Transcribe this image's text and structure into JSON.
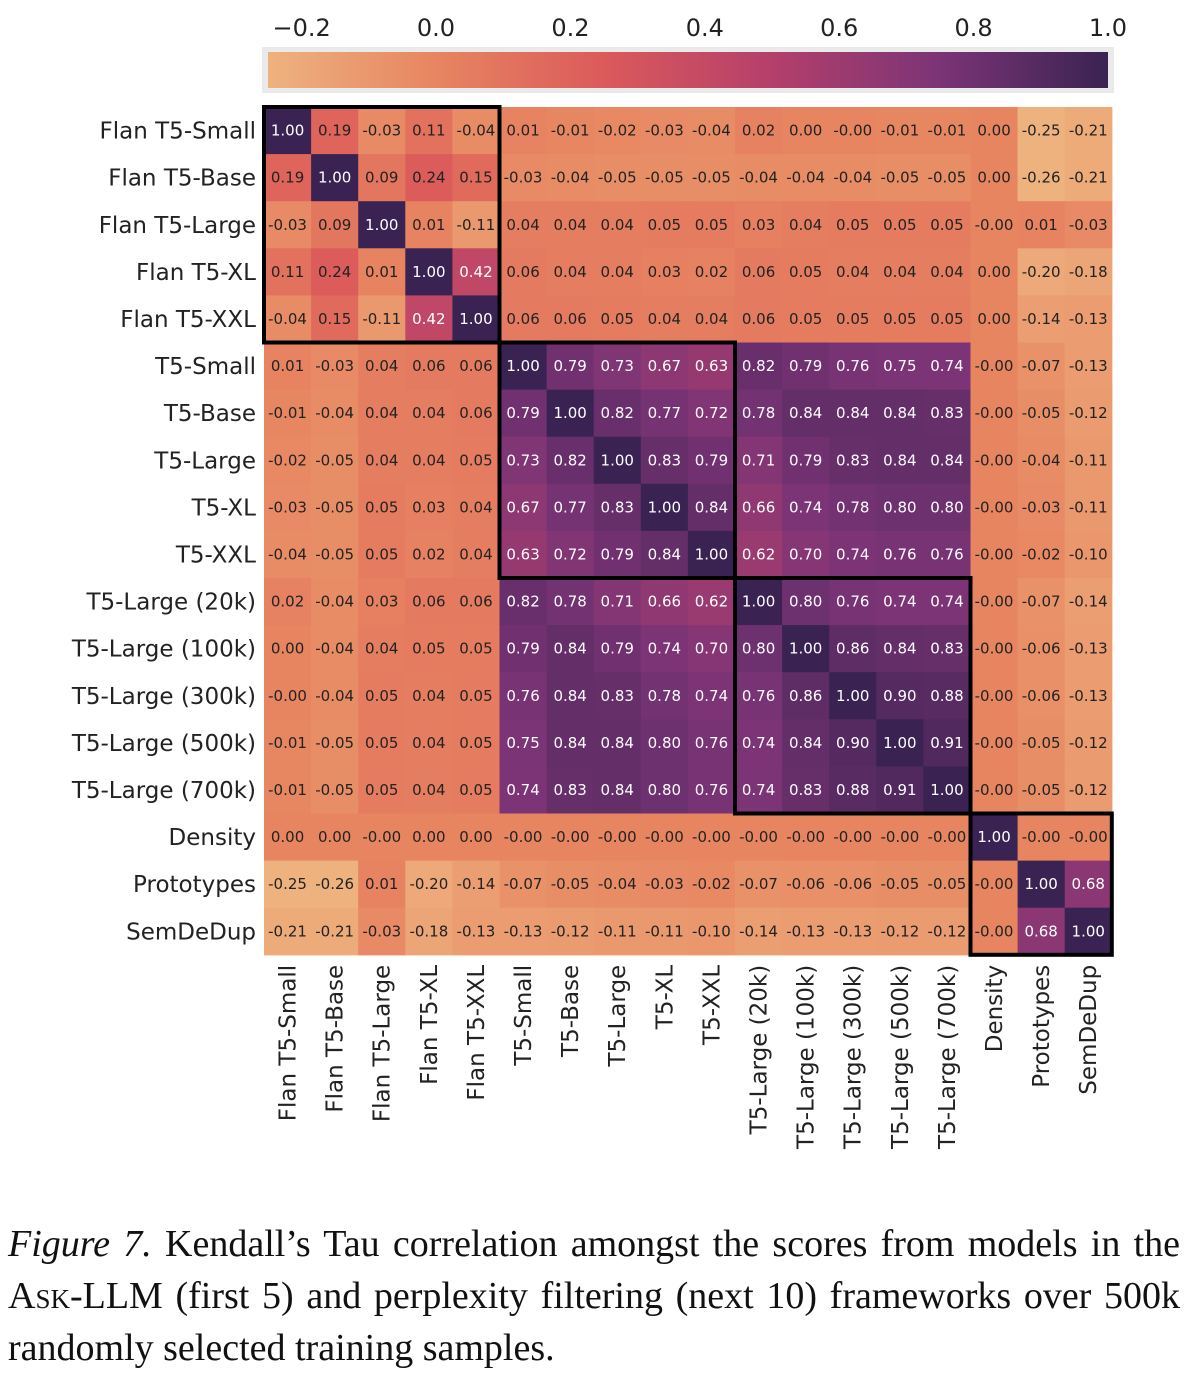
{
  "chart_data": {
    "type": "heatmap",
    "labels": [
      "Flan T5-Small",
      "Flan T5-Base",
      "Flan T5-Large",
      "Flan T5-XL",
      "Flan T5-XXL",
      "T5-Small",
      "T5-Base",
      "T5-Large",
      "T5-XL",
      "T5-XXL",
      "T5-Large (20k)",
      "T5-Large (100k)",
      "T5-Large (300k)",
      "T5-Large (500k)",
      "T5-Large (700k)",
      "Density",
      "Prototypes",
      "SemDeDup"
    ],
    "value_labels": [
      [
        "1.00",
        "0.19",
        "-0.03",
        "0.11",
        "-0.04",
        "0.01",
        "-0.01",
        "-0.02",
        "-0.03",
        "-0.04",
        "0.02",
        "0.00",
        "-0.00",
        "-0.01",
        "-0.01",
        "0.00",
        "-0.25",
        "-0.21"
      ],
      [
        "0.19",
        "1.00",
        "0.09",
        "0.24",
        "0.15",
        "-0.03",
        "-0.04",
        "-0.05",
        "-0.05",
        "-0.05",
        "-0.04",
        "-0.04",
        "-0.04",
        "-0.05",
        "-0.05",
        "0.00",
        "-0.26",
        "-0.21"
      ],
      [
        "-0.03",
        "0.09",
        "1.00",
        "0.01",
        "-0.11",
        "0.04",
        "0.04",
        "0.04",
        "0.05",
        "0.05",
        "0.03",
        "0.04",
        "0.05",
        "0.05",
        "0.05",
        "-0.00",
        "0.01",
        "-0.03"
      ],
      [
        "0.11",
        "0.24",
        "0.01",
        "1.00",
        "0.42",
        "0.06",
        "0.04",
        "0.04",
        "0.03",
        "0.02",
        "0.06",
        "0.05",
        "0.04",
        "0.04",
        "0.04",
        "0.00",
        "-0.20",
        "-0.18"
      ],
      [
        "-0.04",
        "0.15",
        "-0.11",
        "0.42",
        "1.00",
        "0.06",
        "0.06",
        "0.05",
        "0.04",
        "0.04",
        "0.06",
        "0.05",
        "0.05",
        "0.05",
        "0.05",
        "0.00",
        "-0.14",
        "-0.13"
      ],
      [
        "0.01",
        "-0.03",
        "0.04",
        "0.06",
        "0.06",
        "1.00",
        "0.79",
        "0.73",
        "0.67",
        "0.63",
        "0.82",
        "0.79",
        "0.76",
        "0.75",
        "0.74",
        "-0.00",
        "-0.07",
        "-0.13"
      ],
      [
        "-0.01",
        "-0.04",
        "0.04",
        "0.04",
        "0.06",
        "0.79",
        "1.00",
        "0.82",
        "0.77",
        "0.72",
        "0.78",
        "0.84",
        "0.84",
        "0.84",
        "0.83",
        "-0.00",
        "-0.05",
        "-0.12"
      ],
      [
        "-0.02",
        "-0.05",
        "0.04",
        "0.04",
        "0.05",
        "0.73",
        "0.82",
        "1.00",
        "0.83",
        "0.79",
        "0.71",
        "0.79",
        "0.83",
        "0.84",
        "0.84",
        "-0.00",
        "-0.04",
        "-0.11"
      ],
      [
        "-0.03",
        "-0.05",
        "0.05",
        "0.03",
        "0.04",
        "0.67",
        "0.77",
        "0.83",
        "1.00",
        "0.84",
        "0.66",
        "0.74",
        "0.78",
        "0.80",
        "0.80",
        "-0.00",
        "-0.03",
        "-0.11"
      ],
      [
        "-0.04",
        "-0.05",
        "0.05",
        "0.02",
        "0.04",
        "0.63",
        "0.72",
        "0.79",
        "0.84",
        "1.00",
        "0.62",
        "0.70",
        "0.74",
        "0.76",
        "0.76",
        "-0.00",
        "-0.02",
        "-0.10"
      ],
      [
        "0.02",
        "-0.04",
        "0.03",
        "0.06",
        "0.06",
        "0.82",
        "0.78",
        "0.71",
        "0.66",
        "0.62",
        "1.00",
        "0.80",
        "0.76",
        "0.74",
        "0.74",
        "-0.00",
        "-0.07",
        "-0.14"
      ],
      [
        "0.00",
        "-0.04",
        "0.04",
        "0.05",
        "0.05",
        "0.79",
        "0.84",
        "0.79",
        "0.74",
        "0.70",
        "0.80",
        "1.00",
        "0.86",
        "0.84",
        "0.83",
        "-0.00",
        "-0.06",
        "-0.13"
      ],
      [
        "-0.00",
        "-0.04",
        "0.05",
        "0.04",
        "0.05",
        "0.76",
        "0.84",
        "0.83",
        "0.78",
        "0.74",
        "0.76",
        "0.86",
        "1.00",
        "0.90",
        "0.88",
        "-0.00",
        "-0.06",
        "-0.13"
      ],
      [
        "-0.01",
        "-0.05",
        "0.05",
        "0.04",
        "0.05",
        "0.75",
        "0.84",
        "0.84",
        "0.80",
        "0.76",
        "0.74",
        "0.84",
        "0.90",
        "1.00",
        "0.91",
        "-0.00",
        "-0.05",
        "-0.12"
      ],
      [
        "-0.01",
        "-0.05",
        "0.05",
        "0.04",
        "0.05",
        "0.74",
        "0.83",
        "0.84",
        "0.80",
        "0.76",
        "0.74",
        "0.83",
        "0.88",
        "0.91",
        "1.00",
        "-0.00",
        "-0.05",
        "-0.12"
      ],
      [
        "0.00",
        "0.00",
        "-0.00",
        "0.00",
        "0.00",
        "-0.00",
        "-0.00",
        "-0.00",
        "-0.00",
        "-0.00",
        "-0.00",
        "-0.00",
        "-0.00",
        "-0.00",
        "-0.00",
        "1.00",
        "-0.00",
        "-0.00"
      ],
      [
        "-0.25",
        "-0.26",
        "0.01",
        "-0.20",
        "-0.14",
        "-0.07",
        "-0.05",
        "-0.04",
        "-0.03",
        "-0.02",
        "-0.07",
        "-0.06",
        "-0.06",
        "-0.05",
        "-0.05",
        "-0.00",
        "1.00",
        "0.68"
      ],
      [
        "-0.21",
        "-0.21",
        "-0.03",
        "-0.18",
        "-0.13",
        "-0.13",
        "-0.12",
        "-0.11",
        "-0.11",
        "-0.10",
        "-0.14",
        "-0.13",
        "-0.13",
        "-0.12",
        "-0.12",
        "-0.00",
        "0.68",
        "1.00"
      ]
    ],
    "colorbar": {
      "range": [
        -0.25,
        1.0
      ],
      "ticks": [
        -0.2,
        0.0,
        0.2,
        0.4,
        0.6,
        0.8,
        1.0
      ],
      "tick_labels": [
        "−0.2",
        "0.0",
        "0.2",
        "0.4",
        "0.6",
        "0.8",
        "1.0"
      ],
      "placement": "top"
    },
    "colormap": "flare",
    "highlight_groups": [
      [
        0,
        4
      ],
      [
        5,
        9
      ],
      [
        10,
        14
      ],
      [
        15,
        17
      ]
    ]
  },
  "caption": {
    "figure_label": "Figure 7.",
    "text_before": " Kendall’s Tau correlation amongst the scores from models in the ",
    "method_name": "Ask-LLM",
    "text_after": " (first 5) and perplexity filtering (next 10) frameworks over 500k randomly selected training samples."
  }
}
